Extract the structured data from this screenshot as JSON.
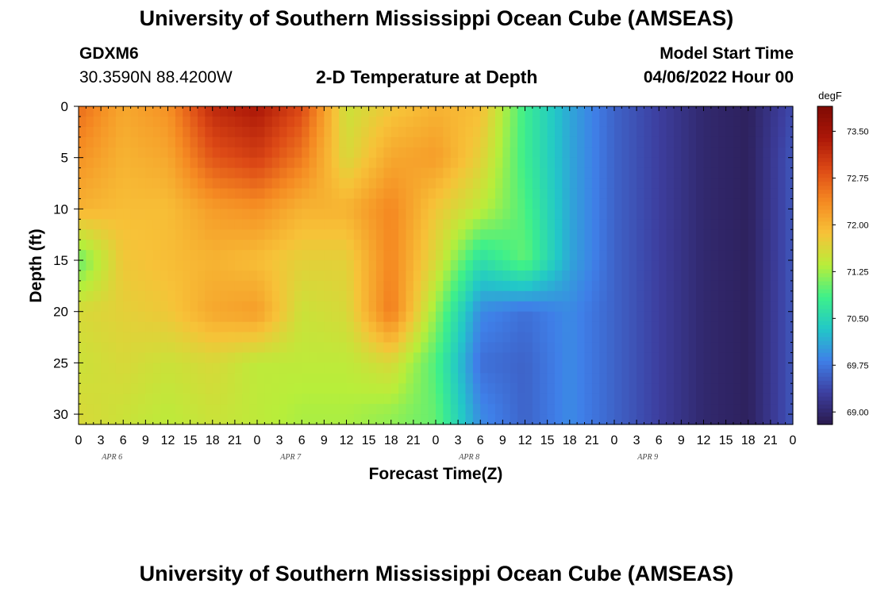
{
  "header": {
    "title": "University of Southern Mississippi Ocean Cube (AMSEAS)",
    "station": "GDXM6",
    "coords": "30.3590N  88.4200W",
    "plot_title": "2-D Temperature at Depth",
    "model_start_label": "Model Start Time",
    "model_start_value": "04/06/2022 Hour 00"
  },
  "footer": {
    "title": "University of Southern Mississippi Ocean Cube (AMSEAS)"
  },
  "chart_data": {
    "type": "heatmap",
    "title": "2-D Temperature at Depth",
    "xlabel": "Forecast Time(Z)",
    "ylabel": "Depth (ft)",
    "x_range_hours": [
      0,
      96
    ],
    "x_tick_labels": [
      "0",
      "3",
      "6",
      "9",
      "12",
      "15",
      "18",
      "21",
      "0",
      "3",
      "6",
      "9",
      "12",
      "15",
      "18",
      "21",
      "0",
      "3",
      "6",
      "9",
      "12",
      "15",
      "18",
      "21",
      "0",
      "3",
      "6",
      "9",
      "12",
      "15",
      "18",
      "21",
      "0"
    ],
    "day_labels": [
      "APR 6",
      "APR 7",
      "APR 8",
      "APR 9"
    ],
    "y_range_ft": [
      0,
      31
    ],
    "y_reversed": true,
    "y_ticks": [
      0,
      5,
      10,
      15,
      20,
      25,
      30
    ],
    "colorbar": {
      "unit": "degF",
      "range": [
        68.8,
        73.9
      ],
      "ticks": [
        "73.50",
        "72.75",
        "72.00",
        "71.25",
        "70.50",
        "69.75",
        "69.00"
      ],
      "colors": [
        "#2a1a4e",
        "#3d3fa0",
        "#3f7fe8",
        "#22c8c8",
        "#3ef08a",
        "#b8ee3a",
        "#f7c238",
        "#f58a22",
        "#dd4a16",
        "#ac1708",
        "#7e0a04"
      ]
    },
    "depths_ft": [
      0,
      5,
      10,
      15,
      20,
      25,
      30
    ],
    "time_hours": [
      0,
      6,
      12,
      18,
      24,
      30,
      36,
      42,
      48,
      54,
      60,
      66,
      72,
      78,
      84,
      90,
      96
    ],
    "temperature_degF": [
      [
        72.6,
        72.1,
        72.3,
        73.2,
        73.4,
        72.9,
        71.5,
        71.8,
        72.0,
        71.9,
        70.8,
        70.1,
        69.6,
        69.3,
        69.0,
        68.9,
        69.4
      ],
      [
        72.3,
        72.0,
        72.1,
        72.8,
        73.0,
        72.5,
        71.6,
        72.1,
        72.2,
        71.7,
        70.8,
        70.1,
        69.6,
        69.3,
        69.0,
        68.9,
        69.5
      ],
      [
        72.0,
        71.9,
        71.9,
        72.2,
        72.3,
        72.0,
        72.0,
        72.4,
        71.8,
        71.4,
        70.9,
        70.1,
        69.6,
        69.3,
        69.0,
        68.9,
        69.5
      ],
      [
        71.0,
        71.8,
        71.9,
        72.0,
        71.9,
        71.7,
        71.7,
        72.4,
        71.6,
        70.6,
        71.0,
        70.1,
        69.6,
        69.3,
        69.0,
        68.9,
        69.5
      ],
      [
        71.6,
        71.7,
        71.8,
        72.1,
        72.2,
        71.5,
        71.6,
        72.5,
        71.2,
        69.9,
        69.7,
        69.9,
        69.6,
        69.3,
        69.0,
        68.9,
        69.5
      ],
      [
        71.5,
        71.6,
        71.5,
        71.6,
        71.4,
        71.4,
        71.4,
        71.6,
        70.9,
        69.7,
        69.6,
        69.9,
        69.6,
        69.3,
        69.0,
        68.9,
        69.5
      ],
      [
        71.6,
        71.5,
        71.4,
        71.5,
        71.4,
        71.3,
        71.3,
        71.2,
        71.0,
        69.9,
        69.6,
        69.9,
        69.6,
        69.3,
        69.0,
        68.9,
        69.5
      ]
    ]
  }
}
